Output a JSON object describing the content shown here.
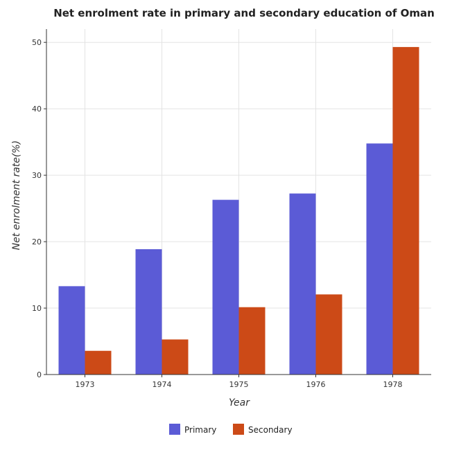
{
  "chart_data": {
    "type": "bar",
    "title": "Net enrolment rate in primary and secondary education of Oman",
    "xlabel": "Year",
    "ylabel": "Net enrolment rate(%)",
    "categories": [
      "1973",
      "1974",
      "1975",
      "1976",
      "1978"
    ],
    "series": [
      {
        "name": "Primary",
        "color": "#5b5bd6",
        "values": [
          13.3,
          18.87,
          26.3,
          27.25,
          34.78
        ]
      },
      {
        "name": "Secondary",
        "color": "#cc4a17",
        "values": [
          3.57,
          5.28,
          10.14,
          12.06,
          49.3
        ]
      }
    ],
    "ylim": [
      0,
      52
    ],
    "yticks": [
      0,
      10,
      20,
      30,
      40,
      50
    ],
    "grid": true,
    "legend_position": "bottom-center"
  }
}
